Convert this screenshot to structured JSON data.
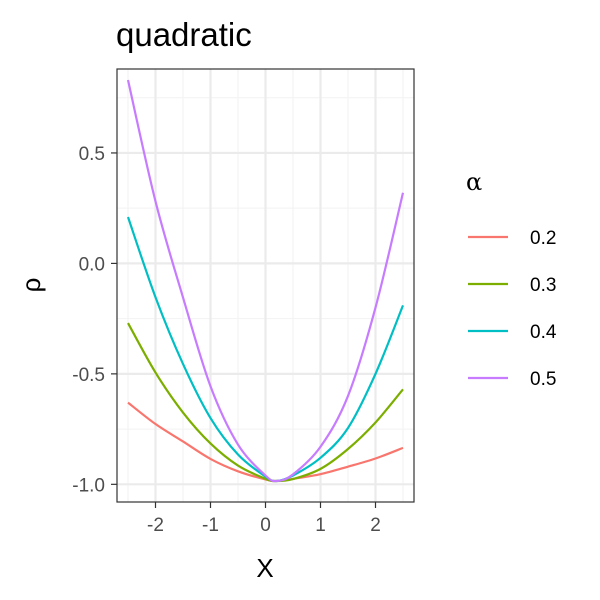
{
  "chart_data": {
    "type": "line",
    "title": "quadratic",
    "xlabel": "X",
    "ylabel": "ρ",
    "xlim": [
      -2.7,
      2.7
    ],
    "ylim": [
      -1.08,
      0.88
    ],
    "x_ticks": [
      -2,
      -1,
      0,
      1,
      2
    ],
    "x_tick_labels": [
      "-2",
      "-1",
      "0",
      "1",
      "2"
    ],
    "y_ticks": [
      -1.0,
      -0.5,
      0.0,
      0.5
    ],
    "y_tick_labels": [
      "-1.0",
      "-0.5",
      "0.0",
      "0.5"
    ],
    "grid": true,
    "legend_title": "α",
    "legend_position": "right",
    "x": [
      -2.5,
      -2.0,
      -1.5,
      -1.0,
      -0.5,
      0.0,
      0.2,
      0.5,
      1.0,
      1.5,
      2.0,
      2.5
    ],
    "series": [
      {
        "name": "0.2",
        "color": "#F8766D",
        "values": [
          -0.63,
          -0.727,
          -0.806,
          -0.885,
          -0.941,
          -0.978,
          -0.985,
          -0.975,
          -0.954,
          -0.92,
          -0.883,
          -0.835
        ]
      },
      {
        "name": "0.3",
        "color": "#7CAE00",
        "values": [
          -0.27,
          -0.494,
          -0.675,
          -0.815,
          -0.915,
          -0.975,
          -0.985,
          -0.976,
          -0.93,
          -0.84,
          -0.72,
          -0.57
        ]
      },
      {
        "name": "0.4",
        "color": "#00BFC4",
        "values": [
          0.21,
          -0.153,
          -0.455,
          -0.7,
          -0.865,
          -0.965,
          -0.985,
          -0.96,
          -0.88,
          -0.745,
          -0.5,
          -0.19
        ]
      },
      {
        "name": "0.5",
        "color": "#C77CFF",
        "values": [
          0.83,
          0.281,
          -0.154,
          -0.556,
          -0.82,
          -0.96,
          -0.985,
          -0.955,
          -0.83,
          -0.6,
          -0.2,
          0.32
        ]
      }
    ]
  }
}
